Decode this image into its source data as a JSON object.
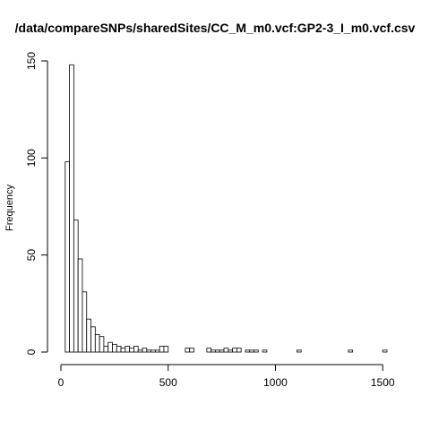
{
  "chart_data": {
    "type": "bar",
    "subtype": "histogram",
    "title": "/data/compareSNPs/sharedSites/CC_M_m0.vcf:GP2-3_I_m0.vcf.csv",
    "xlabel": "",
    "ylabel": "Frequency",
    "xlim": [
      0,
      1520
    ],
    "ylim": [
      0,
      150
    ],
    "bin_width": 20,
    "bins_start": [
      20,
      40,
      60,
      80,
      100,
      120,
      140,
      160,
      180,
      200,
      220,
      240,
      260,
      280,
      300,
      320,
      340,
      360,
      380,
      400,
      420,
      440,
      460,
      480,
      500,
      580,
      600,
      680,
      700,
      720,
      740,
      760,
      780,
      800,
      820,
      860,
      880,
      900,
      940,
      1100,
      1340,
      1500
    ],
    "values": [
      98,
      148,
      68,
      48,
      31,
      17,
      13,
      9,
      8,
      3,
      5,
      4,
      3,
      2,
      3,
      2,
      3,
      1,
      2,
      1,
      1,
      1,
      3,
      3,
      0,
      2,
      2,
      2,
      1,
      1,
      1,
      2,
      1,
      2,
      2,
      1,
      1,
      1,
      1,
      1,
      1,
      1
    ],
    "x_ticks": [
      "0",
      "500",
      "1000",
      "1500"
    ],
    "x_tick_values": [
      0,
      500,
      1000,
      1500
    ],
    "y_ticks": [
      "0",
      "50",
      "100",
      "150"
    ],
    "y_tick_values": [
      0,
      50,
      100,
      150
    ],
    "grid": false,
    "bar_fill": "#ffffff",
    "bar_stroke": "#000000"
  }
}
